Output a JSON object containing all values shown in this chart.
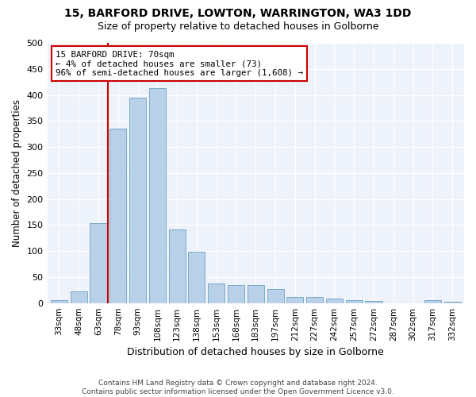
{
  "title": "15, BARFORD DRIVE, LOWTON, WARRINGTON, WA3 1DD",
  "subtitle": "Size of property relative to detached houses in Golborne",
  "xlabel": "Distribution of detached houses by size in Golborne",
  "ylabel": "Number of detached properties",
  "categories": [
    "33sqm",
    "48sqm",
    "63sqm",
    "78sqm",
    "93sqm",
    "108sqm",
    "123sqm",
    "138sqm",
    "153sqm",
    "168sqm",
    "183sqm",
    "197sqm",
    "212sqm",
    "227sqm",
    "242sqm",
    "257sqm",
    "272sqm",
    "287sqm",
    "302sqm",
    "317sqm",
    "332sqm"
  ],
  "values": [
    5,
    23,
    153,
    335,
    395,
    413,
    142,
    99,
    38,
    35,
    35,
    27,
    12,
    12,
    9,
    5,
    4,
    0,
    0,
    5,
    3
  ],
  "bar_color": "#b8d0e8",
  "bar_edge_color": "#7aaac8",
  "annotation_text": "15 BARFORD DRIVE: 70sqm\n← 4% of detached houses are smaller (73)\n96% of semi-detached houses are larger (1,608) →",
  "annotation_box_color": "#ffffff",
  "annotation_box_edge": "#cc0000",
  "footer_text": "Contains HM Land Registry data © Crown copyright and database right 2024.\nContains public sector information licensed under the Open Government Licence v3.0.",
  "bg_color": "#eef2fa",
  "ylim": [
    0,
    500
  ],
  "yticks": [
    0,
    50,
    100,
    150,
    200,
    250,
    300,
    350,
    400,
    450,
    500
  ]
}
